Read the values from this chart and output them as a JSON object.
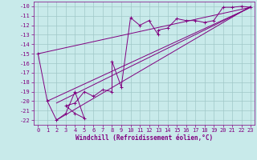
{
  "xlabel": "Windchill (Refroidissement éolien,°C)",
  "bg_color": "#c8eaea",
  "grid_color": "#a0c8c8",
  "line_color": "#800080",
  "xlim": [
    -0.5,
    23.4
  ],
  "ylim": [
    -22.5,
    -9.5
  ],
  "xticks": [
    0,
    1,
    2,
    3,
    4,
    5,
    6,
    7,
    8,
    9,
    10,
    11,
    12,
    13,
    14,
    15,
    16,
    17,
    18,
    19,
    20,
    21,
    22,
    23
  ],
  "yticks": [
    -10,
    -11,
    -12,
    -13,
    -14,
    -15,
    -16,
    -17,
    -18,
    -19,
    -20,
    -21,
    -22
  ],
  "series": [
    [
      0,
      -15.0
    ],
    [
      1,
      -20.0
    ],
    [
      2,
      -22.0
    ],
    [
      3,
      -21.3
    ],
    [
      4,
      -19.0
    ],
    [
      5,
      -21.8
    ],
    [
      4,
      -21.3
    ],
    [
      3,
      -20.5
    ],
    [
      4,
      -20.2
    ],
    [
      5,
      -19.0
    ],
    [
      6,
      -19.5
    ],
    [
      7,
      -18.8
    ],
    [
      8,
      -19.0
    ],
    [
      8,
      -15.8
    ],
    [
      9,
      -18.5
    ],
    [
      10,
      -11.2
    ],
    [
      11,
      -12.0
    ],
    [
      12,
      -11.5
    ],
    [
      13,
      -13.0
    ],
    [
      13,
      -12.5
    ],
    [
      14,
      -12.3
    ],
    [
      15,
      -11.3
    ],
    [
      16,
      -11.5
    ],
    [
      17,
      -11.5
    ],
    [
      18,
      -11.7
    ],
    [
      19,
      -11.5
    ],
    [
      20,
      -10.1
    ],
    [
      21,
      -10.1
    ],
    [
      22,
      -10.0
    ],
    [
      23,
      -10.1
    ]
  ],
  "line1_x": [
    0,
    23
  ],
  "line1_y": [
    -15.0,
    -10.1
  ],
  "line2_x": [
    1,
    23
  ],
  "line2_y": [
    -20.0,
    -10.1
  ],
  "line3_x": [
    2,
    23
  ],
  "line3_y": [
    -22.0,
    -10.0
  ],
  "line4_x": [
    2,
    23
  ],
  "line4_y": [
    -20.2,
    -10.1
  ]
}
